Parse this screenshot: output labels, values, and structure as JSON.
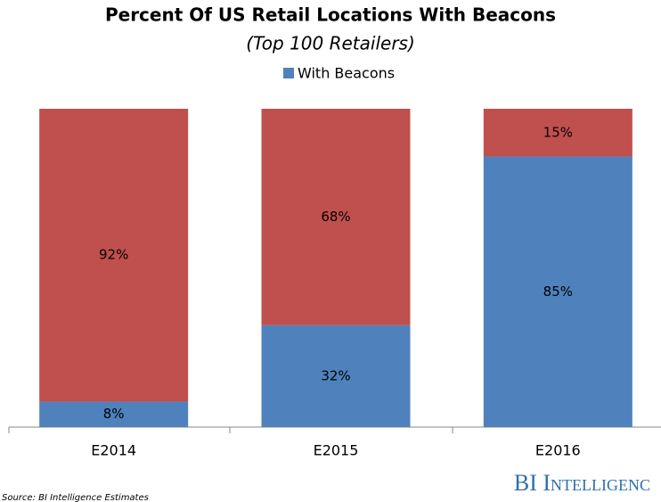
{
  "chart_data": {
    "type": "stacked-bar",
    "title": "Percent Of US Retail Locations With Beacons",
    "subtitle": "(Top 100 Retailers)",
    "categories": [
      "E2014",
      "E2015",
      "E2016"
    ],
    "series": [
      {
        "name": "With Beacons",
        "color": "#4f81bd",
        "values": [
          8,
          32,
          85
        ],
        "value_labels": [
          "8%",
          "32%",
          "85%"
        ]
      },
      {
        "color": "#c0504d",
        "values": [
          92,
          68,
          15
        ],
        "value_labels": [
          "92%",
          "68%",
          "15%"
        ]
      }
    ],
    "ylim": [
      0,
      100
    ],
    "source": "Source: BI Intelligence Estimates",
    "logo": "BI Intelligenc"
  }
}
